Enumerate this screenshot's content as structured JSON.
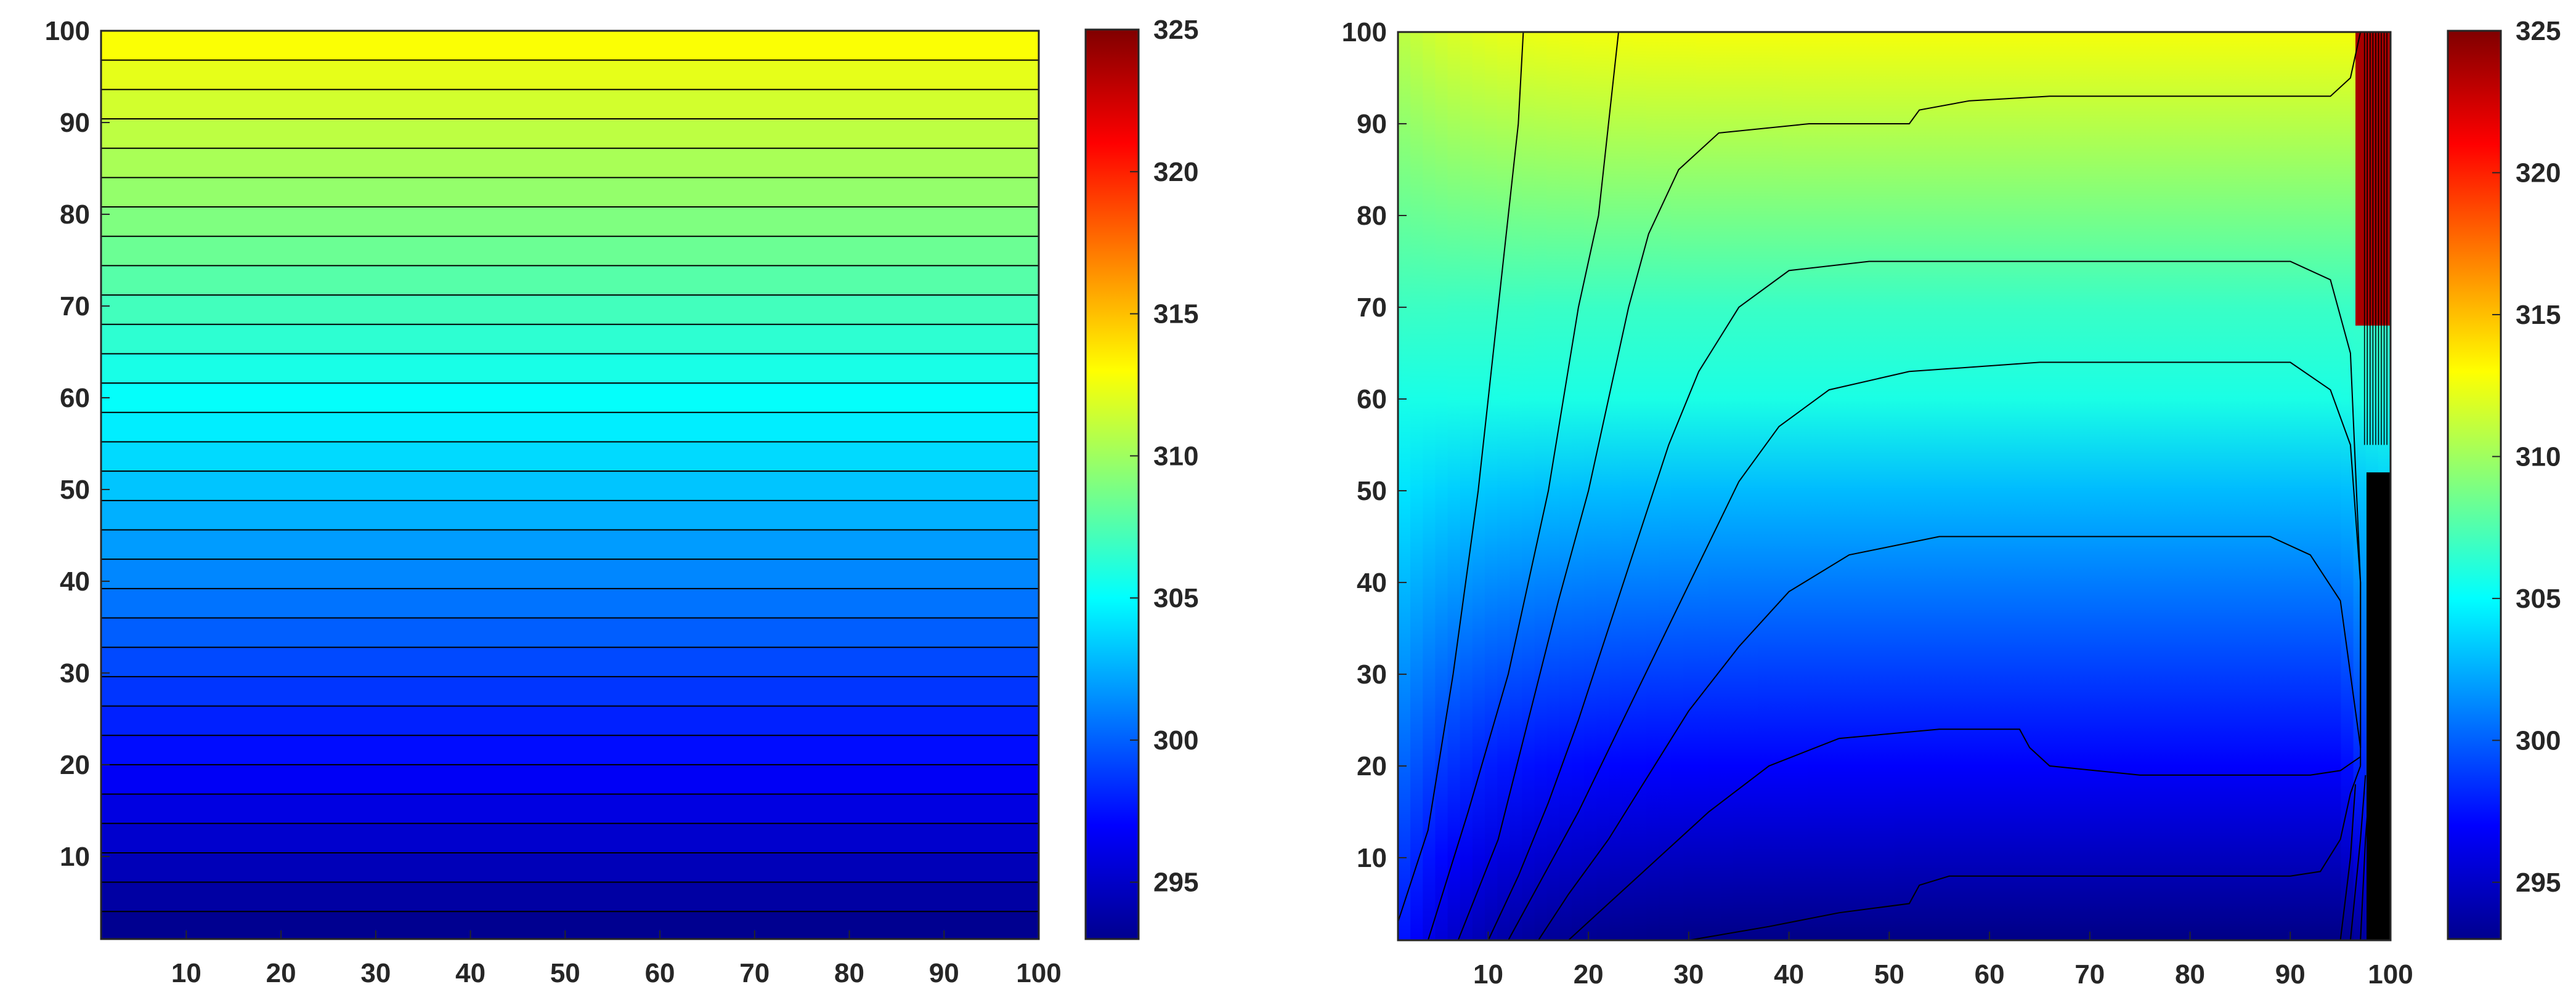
{
  "chart_data": [
    {
      "type": "heatmap",
      "subtype": "filled-contour",
      "description_key": "left",
      "title": "",
      "xlabel": "",
      "ylabel": "",
      "xlim": [
        1,
        100
      ],
      "ylim": [
        1,
        100
      ],
      "x_ticks": [
        10,
        20,
        30,
        40,
        50,
        60,
        70,
        80,
        90,
        100
      ],
      "y_ticks": [
        10,
        20,
        30,
        40,
        50,
        60,
        70,
        80,
        90,
        100
      ],
      "field": {
        "kind": "linear-in-y",
        "value_at_y1": 293.2,
        "value_at_y100": 313.2
      },
      "contour_levels_y": [
        4,
        7.2,
        10.4,
        13.6,
        16.8,
        20,
        23.2,
        26.4,
        29.6,
        32.8,
        36,
        39.2,
        42.4,
        45.6,
        48.8,
        52,
        55.2,
        58.4,
        61.6,
        64.8,
        68,
        71.2,
        74.4,
        77.6,
        80.8,
        84,
        87.2,
        90.4,
        93.6,
        96.8
      ],
      "colorbar": {
        "colormap": "jet",
        "clim": [
          293,
          325
        ],
        "ticks": [
          295,
          300,
          305,
          310,
          315,
          320,
          325
        ]
      },
      "grid": false,
      "legend": "none"
    },
    {
      "type": "heatmap",
      "subtype": "filled-contour",
      "description_key": "right",
      "title": "",
      "xlabel": "",
      "ylabel": "",
      "xlim": [
        1,
        100
      ],
      "ylim": [
        1,
        100
      ],
      "x_ticks": [
        10,
        20,
        30,
        40,
        50,
        60,
        70,
        80,
        90,
        100
      ],
      "y_ticks": [
        10,
        20,
        30,
        40,
        50,
        60,
        70,
        80,
        90,
        100
      ],
      "contour_lines": [
        [
          [
            1,
            3
          ],
          [
            4,
            13
          ],
          [
            6.5,
            30
          ],
          [
            9,
            50
          ],
          [
            11,
            70
          ],
          [
            12,
            80
          ],
          [
            13,
            90
          ],
          [
            13.5,
            100
          ]
        ],
        [
          [
            4,
            1
          ],
          [
            8,
            15
          ],
          [
            12,
            30
          ],
          [
            16,
            50
          ],
          [
            19,
            70
          ],
          [
            21,
            80
          ],
          [
            22,
            90
          ],
          [
            23,
            100
          ]
        ],
        [
          [
            7,
            1
          ],
          [
            11,
            12
          ],
          [
            14,
            25
          ],
          [
            17,
            38
          ],
          [
            20,
            50
          ],
          [
            22,
            60
          ],
          [
            24,
            70
          ],
          [
            26,
            78
          ],
          [
            29,
            85
          ],
          [
            33,
            89
          ],
          [
            42,
            90
          ],
          [
            52,
            90
          ],
          [
            53,
            91.5
          ],
          [
            58,
            92.5
          ],
          [
            66,
            93
          ],
          [
            80,
            93
          ],
          [
            90,
            93
          ],
          [
            94,
            93
          ],
          [
            96,
            95
          ],
          [
            97,
            100
          ]
        ],
        [
          [
            10,
            1
          ],
          [
            13,
            8
          ],
          [
            16,
            16
          ],
          [
            19,
            25
          ],
          [
            22,
            35
          ],
          [
            25,
            45
          ],
          [
            28,
            55
          ],
          [
            31,
            63
          ],
          [
            35,
            70
          ],
          [
            40,
            74
          ],
          [
            48,
            75
          ],
          [
            60,
            75
          ],
          [
            80,
            75
          ],
          [
            90,
            75
          ],
          [
            94,
            73
          ],
          [
            96,
            65
          ],
          [
            97,
            40
          ],
          [
            97,
            20
          ]
        ],
        [
          [
            12,
            1
          ],
          [
            15,
            7
          ],
          [
            19,
            15
          ],
          [
            23,
            24
          ],
          [
            27,
            33
          ],
          [
            31,
            42
          ],
          [
            35,
            51
          ],
          [
            39,
            57
          ],
          [
            44,
            61
          ],
          [
            52,
            63
          ],
          [
            65,
            64
          ],
          [
            80,
            64
          ],
          [
            90,
            64
          ],
          [
            94,
            61
          ],
          [
            96,
            55
          ],
          [
            97,
            40
          ],
          [
            97,
            22
          ]
        ],
        [
          [
            15,
            1
          ],
          [
            18,
            6
          ],
          [
            22,
            12
          ],
          [
            26,
            19
          ],
          [
            30,
            26
          ],
          [
            35,
            33
          ],
          [
            40,
            39
          ],
          [
            46,
            43
          ],
          [
            55,
            45
          ],
          [
            68,
            45
          ],
          [
            80,
            45
          ],
          [
            88,
            45
          ],
          [
            92,
            43
          ],
          [
            95,
            38
          ],
          [
            96,
            30
          ],
          [
            97,
            22
          ]
        ],
        [
          [
            18,
            1
          ],
          [
            22,
            5
          ],
          [
            27,
            10
          ],
          [
            32,
            15
          ],
          [
            38,
            20
          ],
          [
            45,
            23
          ],
          [
            55,
            24
          ],
          [
            63,
            24
          ],
          [
            64,
            22
          ],
          [
            66,
            20
          ],
          [
            75,
            19
          ],
          [
            85,
            19
          ],
          [
            92,
            19
          ],
          [
            95,
            19.5
          ],
          [
            97,
            21
          ]
        ],
        [
          [
            30,
            1
          ],
          [
            38,
            2.5
          ],
          [
            45,
            4
          ],
          [
            52,
            5
          ],
          [
            53,
            7
          ],
          [
            56,
            8
          ],
          [
            66,
            8
          ],
          [
            80,
            8
          ],
          [
            90,
            8
          ],
          [
            93,
            8.5
          ],
          [
            95,
            12
          ],
          [
            96,
            17
          ],
          [
            97,
            20
          ]
        ],
        [
          [
            95,
            1
          ],
          [
            96,
            10
          ],
          [
            96.5,
            18
          ]
        ],
        [
          [
            96,
            1
          ],
          [
            97,
            12
          ],
          [
            97.5,
            19
          ]
        ],
        [
          [
            97,
            1
          ],
          [
            97.5,
            12
          ],
          [
            98,
            19.5
          ]
        ]
      ],
      "colorbar": {
        "colormap": "jet",
        "clim": [
          293,
          325
        ],
        "ticks": [
          295,
          300,
          305,
          310,
          315,
          320,
          325
        ]
      },
      "grid": false,
      "legend": "none"
    }
  ]
}
